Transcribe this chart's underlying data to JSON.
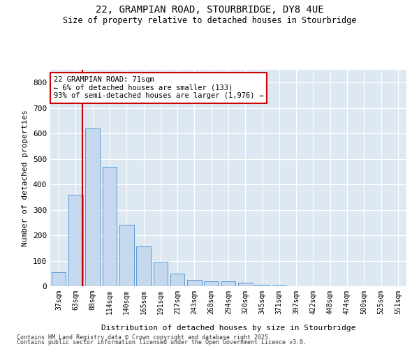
{
  "title1": "22, GRAMPIAN ROAD, STOURBRIDGE, DY8 4UE",
  "title2": "Size of property relative to detached houses in Stourbridge",
  "xlabel": "Distribution of detached houses by size in Stourbridge",
  "ylabel": "Number of detached properties",
  "categories": [
    "37sqm",
    "63sqm",
    "88sqm",
    "114sqm",
    "140sqm",
    "165sqm",
    "191sqm",
    "217sqm",
    "243sqm",
    "268sqm",
    "294sqm",
    "320sqm",
    "345sqm",
    "371sqm",
    "397sqm",
    "422sqm",
    "448sqm",
    "474sqm",
    "500sqm",
    "525sqm",
    "551sqm"
  ],
  "values": [
    55,
    360,
    620,
    470,
    240,
    155,
    97,
    50,
    25,
    20,
    20,
    13,
    5,
    2,
    1,
    1,
    0,
    0,
    0,
    0,
    0
  ],
  "bar_color": "#c5d8ed",
  "bar_edge_color": "#5b9bd5",
  "red_line_x": 1.4,
  "annotation_line1": "22 GRAMPIAN ROAD: 71sqm",
  "annotation_line2": "← 6% of detached houses are smaller (133)",
  "annotation_line3": "93% of semi-detached houses are larger (1,976) →",
  "annotation_box_color": "#ffffff",
  "annotation_box_edge": "#cc0000",
  "footnote1": "Contains HM Land Registry data © Crown copyright and database right 2025.",
  "footnote2": "Contains public sector information licensed under the Open Government Licence v3.0.",
  "background_color": "#dde8f3",
  "ylim": [
    0,
    850
  ],
  "yticks": [
    0,
    100,
    200,
    300,
    400,
    500,
    600,
    700,
    800
  ]
}
